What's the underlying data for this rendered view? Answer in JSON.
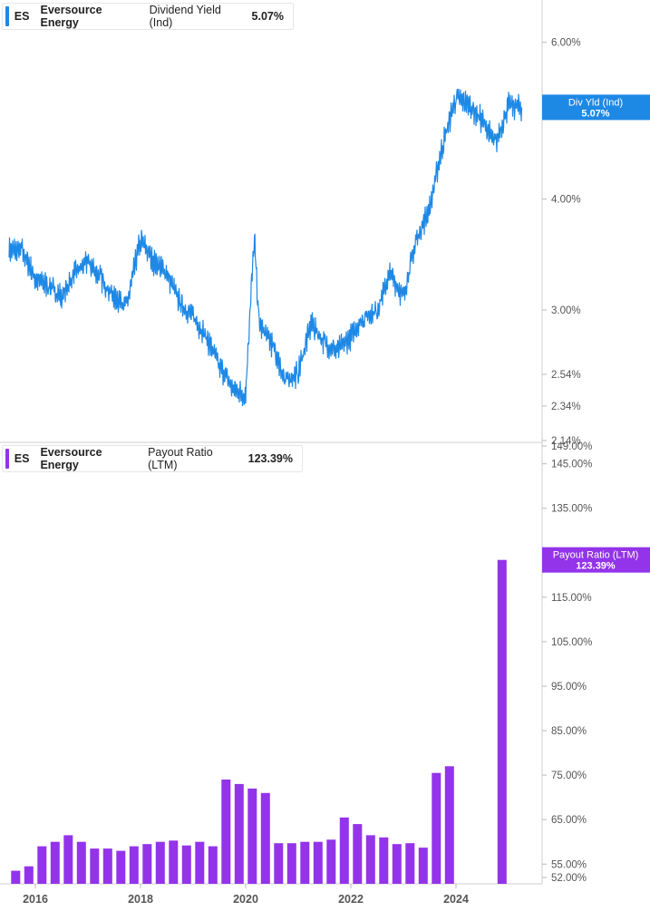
{
  "chart_data": [
    {
      "type": "line",
      "ticker": "ES",
      "company": "Eversource Energy",
      "metric": "Dividend Yield (Ind)",
      "current_value": "5.07%",
      "tag_label": "Div Yld (Ind)",
      "tag_value": "5.07%",
      "y_scale": "log",
      "ylim": [
        2.14,
        6.6
      ],
      "y_ticks": [
        "6.00%",
        "4.00%",
        "3.00%",
        "2.54%",
        "2.34%",
        "2.14%"
      ],
      "y_tick_values": [
        6.0,
        4.0,
        3.0,
        2.54,
        2.34,
        2.14
      ],
      "color": "#1e88e5",
      "x": [
        "2015-07",
        "2015-10",
        "2016-01",
        "2016-04",
        "2016-07",
        "2016-10",
        "2017-01",
        "2017-04",
        "2017-07",
        "2017-10",
        "2018-01",
        "2018-04",
        "2018-07",
        "2018-10",
        "2019-01",
        "2019-04",
        "2019-07",
        "2019-10",
        "2020-01",
        "2020-03",
        "2020-04",
        "2020-07",
        "2020-10",
        "2021-01",
        "2021-04",
        "2021-07",
        "2021-10",
        "2022-01",
        "2022-04",
        "2022-07",
        "2022-10",
        "2023-01",
        "2023-04",
        "2023-07",
        "2023-10",
        "2024-01",
        "2024-04",
        "2024-07",
        "2024-10",
        "2025-01",
        "2025-04"
      ],
      "values": [
        3.5,
        3.5,
        3.25,
        3.2,
        3.1,
        3.3,
        3.4,
        3.25,
        3.1,
        3.05,
        3.6,
        3.4,
        3.3,
        3.05,
        2.95,
        2.8,
        2.6,
        2.45,
        2.4,
        3.6,
        2.9,
        2.75,
        2.5,
        2.55,
        2.9,
        2.75,
        2.7,
        2.8,
        2.95,
        3.0,
        3.3,
        3.1,
        3.6,
        3.9,
        4.6,
        5.2,
        5.1,
        4.9,
        4.6,
        5.1,
        5.07
      ]
    },
    {
      "type": "bar",
      "ticker": "ES",
      "company": "Eversource Energy",
      "metric": "Payout Ratio (LTM)",
      "current_value": "123.39%",
      "tag_label": "Payout Ratio (LTM)",
      "tag_value": "123.39%",
      "ylim": [
        52,
        149
      ],
      "y_ticks": [
        "149.00%",
        "145.00%",
        "135.00%",
        "115.00%",
        "105.00%",
        "95.00%",
        "85.00%",
        "75.00%",
        "65.00%",
        "55.00%",
        "52.00%"
      ],
      "y_tick_values": [
        149,
        145,
        135,
        115,
        105,
        95,
        85,
        75,
        65,
        55,
        52
      ],
      "color": "#9333ea",
      "x": [
        "2015-Q3",
        "2015-Q4",
        "2016-Q1",
        "2016-Q2",
        "2016-Q3",
        "2016-Q4",
        "2017-Q1",
        "2017-Q2",
        "2017-Q3",
        "2017-Q4",
        "2018-Q1",
        "2018-Q2",
        "2018-Q3",
        "2018-Q4",
        "2019-Q1",
        "2019-Q2",
        "2019-Q3",
        "2019-Q4",
        "2020-Q1",
        "2020-Q2",
        "2020-Q3",
        "2020-Q4",
        "2021-Q1",
        "2021-Q2",
        "2021-Q3",
        "2021-Q4",
        "2022-Q1",
        "2022-Q2",
        "2022-Q3",
        "2022-Q4",
        "2023-Q1",
        "2023-Q2",
        "2023-Q3",
        "2023-Q4",
        "2024-Q1",
        "2024-Q2",
        "2024-Q3",
        "2024-Q4"
      ],
      "values": [
        53.5,
        54.5,
        59,
        60,
        61.5,
        60,
        58.5,
        58.5,
        58,
        59,
        59.5,
        60,
        60.3,
        59.2,
        60,
        59,
        74,
        73,
        72,
        71,
        59.7,
        59.7,
        60,
        60,
        60.5,
        65.5,
        64,
        61.5,
        61,
        59.5,
        59.7,
        58.7,
        75.5,
        77,
        null,
        null,
        null,
        123.39
      ]
    }
  ],
  "x_axis": {
    "labels": [
      "2016",
      "2018",
      "2020",
      "2022",
      "2024"
    ]
  }
}
